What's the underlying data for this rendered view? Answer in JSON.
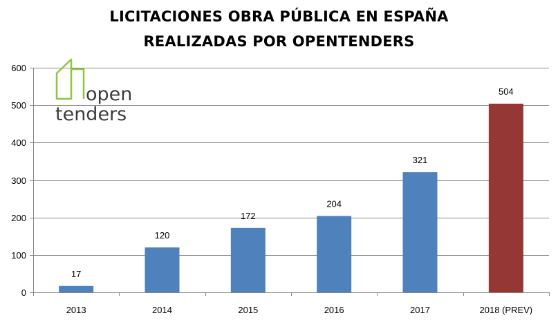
{
  "chart_data": {
    "type": "bar",
    "title_lines": [
      "LICITACIONES OBRA PÚBLICA EN ESPAÑA",
      "REALIZADAS POR OPENTENDERS"
    ],
    "categories": [
      "2013",
      "2014",
      "2015",
      "2016",
      "2017",
      "2018 (PREV)"
    ],
    "values": [
      17,
      120,
      172,
      204,
      321,
      504
    ],
    "bar_colors": [
      "#4f81bd",
      "#4f81bd",
      "#4f81bd",
      "#4f81bd",
      "#4f81bd",
      "#953735"
    ],
    "ylim": [
      0,
      600
    ],
    "yticks": [
      0,
      100,
      200,
      300,
      400,
      500,
      600
    ],
    "grid": true,
    "data_labels": true
  },
  "logo": {
    "line1": "open",
    "line2": "tenders",
    "accent_color": "#8dc63f",
    "text_color": "#3d3d3d"
  }
}
